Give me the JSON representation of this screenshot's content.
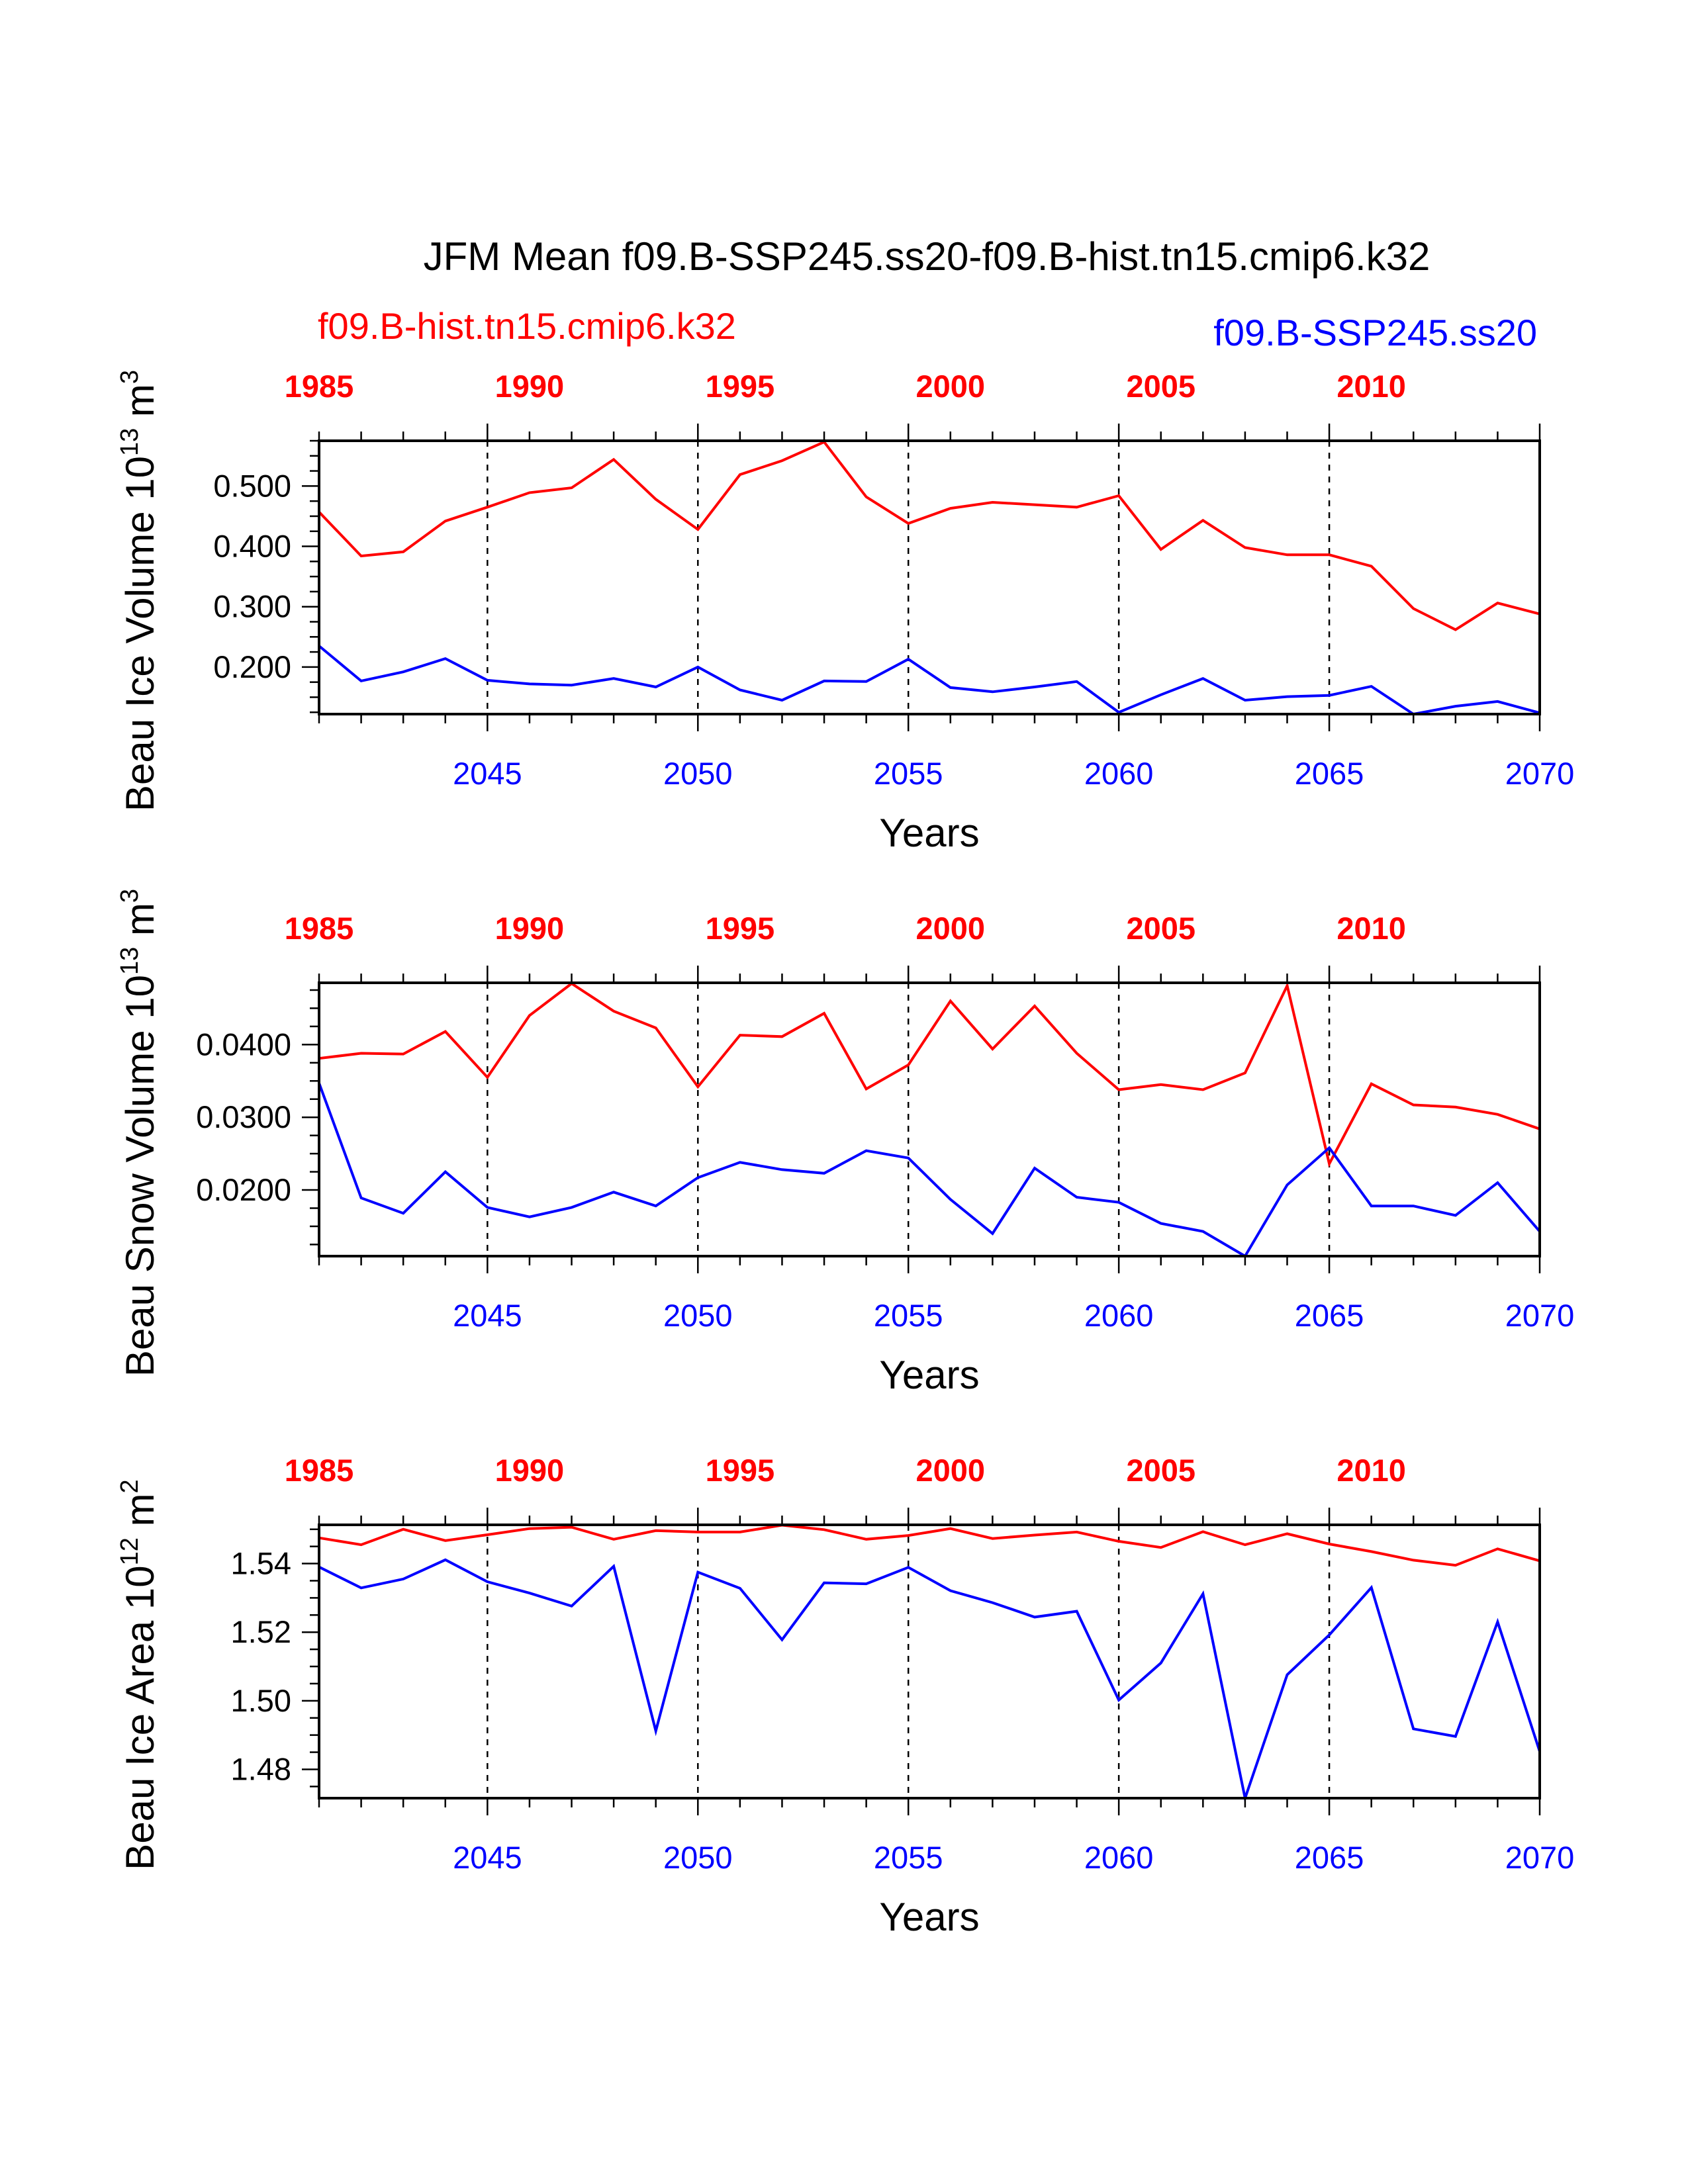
{
  "title": "JFM Mean f09.B-SSP245.ss20-f09.B-hist.tn15.cmip6.k32",
  "legend": {
    "hist_label": "f09.B-hist.tn15.cmip6.k32",
    "ssp_label": "f09.B-SSP245.ss20"
  },
  "colors": {
    "hist": "#ff0000",
    "ssp": "#0000ff",
    "axis": "#000000"
  },
  "chart_data": [
    {
      "type": "line",
      "ylabel": "Beau Ice Volume 10",
      "ylabel_exp": "13",
      "ylabel_unit": "m",
      "ylabel_unit_exp": "3",
      "xlabel": "Years",
      "ylim": [
        0.122,
        0.575
      ],
      "yticks": [
        0.2,
        0.3,
        0.4,
        0.5
      ],
      "ytick_labels": [
        "0.200",
        "0.300",
        "0.400",
        "0.500"
      ],
      "x_bottom": {
        "min": 2041,
        "max": 2070,
        "ticks": [
          2045,
          2050,
          2055,
          2060,
          2065,
          2070
        ]
      },
      "x_top": {
        "min": 1985,
        "max": 2014,
        "ticks": [
          1985,
          1990,
          1995,
          2000,
          2005,
          2010
        ]
      },
      "series": [
        {
          "name": "f09.B-hist.tn15.cmip6.k32",
          "axis": "top",
          "values": [
            0.457,
            0.384,
            0.391,
            0.442,
            0.465,
            0.489,
            0.497,
            0.544,
            0.478,
            0.428,
            0.519,
            0.542,
            0.573,
            0.482,
            0.438,
            0.463,
            0.473,
            0.469,
            0.465,
            0.484,
            0.395,
            0.443,
            0.398,
            0.386,
            0.386,
            0.367,
            0.297,
            0.262,
            0.306,
            0.288
          ]
        },
        {
          "name": "f09.B-SSP245.ss20",
          "axis": "bottom",
          "values": [
            0.235,
            0.177,
            0.192,
            0.214,
            0.178,
            0.172,
            0.17,
            0.181,
            0.167,
            0.2,
            0.162,
            0.145,
            0.177,
            0.176,
            0.213,
            0.166,
            0.159,
            0.167,
            0.176,
            0.125,
            0.154,
            0.181,
            0.145,
            0.151,
            0.153,
            0.168,
            0.122,
            0.135,
            0.143,
            0.124
          ]
        }
      ]
    },
    {
      "type": "line",
      "ylabel": "Beau Snow Volume 10",
      "ylabel_exp": "13",
      "ylabel_unit": "m",
      "ylabel_unit_exp": "3",
      "xlabel": "Years",
      "ylim": [
        0.0109,
        0.0485
      ],
      "yticks": [
        0.02,
        0.03,
        0.04
      ],
      "ytick_labels": [
        "0.0200",
        "0.0300",
        "0.0400"
      ],
      "x_bottom": {
        "min": 2041,
        "max": 2070,
        "ticks": [
          2045,
          2050,
          2055,
          2060,
          2065,
          2070
        ]
      },
      "x_top": {
        "min": 1985,
        "max": 2014,
        "ticks": [
          1985,
          1990,
          1995,
          2000,
          2005,
          2010
        ]
      },
      "series": [
        {
          "name": "f09.B-hist.tn15.cmip6.k32",
          "axis": "top",
          "values": [
            0.0381,
            0.0388,
            0.0387,
            0.0418,
            0.0355,
            0.044,
            0.0484,
            0.0446,
            0.0423,
            0.0342,
            0.0413,
            0.0411,
            0.0443,
            0.0339,
            0.0372,
            0.046,
            0.0394,
            0.0453,
            0.0388,
            0.0338,
            0.0345,
            0.0338,
            0.0361,
            0.0481,
            0.0236,
            0.0346,
            0.0317,
            0.0314,
            0.0304,
            0.0284
          ]
        },
        {
          "name": "f09.B-SSP245.ss20",
          "axis": "bottom",
          "values": [
            0.0347,
            0.0189,
            0.0168,
            0.0225,
            0.0176,
            0.0163,
            0.0176,
            0.0197,
            0.0178,
            0.0217,
            0.0238,
            0.0228,
            0.0223,
            0.0254,
            0.0244,
            0.0187,
            0.014,
            0.023,
            0.019,
            0.0183,
            0.0154,
            0.0143,
            0.0109,
            0.0207,
            0.0258,
            0.0178,
            0.0178,
            0.0165,
            0.021,
            0.0143
          ]
        }
      ]
    },
    {
      "type": "line",
      "ylabel": "Beau Ice Area 10",
      "ylabel_exp": "12",
      "ylabel_unit": "m",
      "ylabel_unit_exp": "2",
      "xlabel": "Years",
      "ylim": [
        1.4716,
        1.5513
      ],
      "yticks": [
        1.48,
        1.5,
        1.52,
        1.54
      ],
      "ytick_labels": [
        "1.48",
        "1.50",
        "1.52",
        "1.54"
      ],
      "x_bottom": {
        "min": 2041,
        "max": 2070,
        "ticks": [
          2045,
          2050,
          2055,
          2060,
          2065,
          2070
        ]
      },
      "x_top": {
        "min": 1985,
        "max": 2014,
        "ticks": [
          1985,
          1990,
          1995,
          2000,
          2005,
          2010
        ]
      },
      "series": [
        {
          "name": "f09.B-hist.tn15.cmip6.k32",
          "axis": "top",
          "values": [
            1.5475,
            1.5455,
            1.55,
            1.5467,
            1.5484,
            1.5502,
            1.5506,
            1.5471,
            1.5496,
            1.5492,
            1.5492,
            1.5512,
            1.5499,
            1.5471,
            1.5482,
            1.5502,
            1.5473,
            1.5483,
            1.5492,
            1.5465,
            1.5447,
            1.5493,
            1.5455,
            1.5487,
            1.5457,
            1.5435,
            1.541,
            1.5395,
            1.5443,
            1.5408
          ]
        },
        {
          "name": "f09.B-SSP245.ss20",
          "axis": "bottom",
          "values": [
            1.539,
            1.5329,
            1.5355,
            1.5411,
            1.5347,
            1.5314,
            1.5276,
            1.5392,
            1.4912,
            1.5375,
            1.5328,
            1.5178,
            1.5344,
            1.5341,
            1.5389,
            1.5321,
            1.5286,
            1.5244,
            1.5261,
            1.5002,
            1.511,
            1.5312,
            1.4716,
            1.5076,
            1.5192,
            1.533,
            1.4918,
            1.4896,
            1.523,
            1.4852
          ]
        }
      ]
    }
  ]
}
